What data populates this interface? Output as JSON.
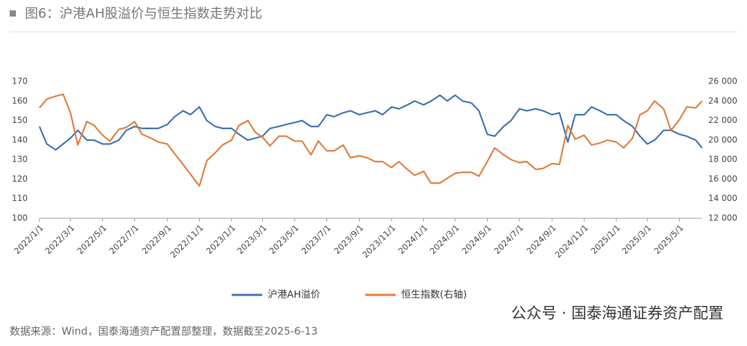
{
  "chart_data": {
    "type": "line",
    "title": "图6：沪港AH股溢价与恒生指数走势对比",
    "x": [
      "2022/1/1",
      "2022/1/15",
      "2022/2/1",
      "2022/2/15",
      "2022/3/1",
      "2022/3/15",
      "2022/4/1",
      "2022/4/15",
      "2022/5/1",
      "2022/5/15",
      "2022/6/1",
      "2022/6/15",
      "2022/7/1",
      "2022/7/15",
      "2022/8/1",
      "2022/8/15",
      "2022/9/1",
      "2022/9/15",
      "2022/10/1",
      "2022/10/15",
      "2022/11/1",
      "2022/11/15",
      "2022/12/1",
      "2022/12/15",
      "2023/1/1",
      "2023/1/15",
      "2023/2/1",
      "2023/2/15",
      "2023/3/1",
      "2023/3/15",
      "2023/4/1",
      "2023/4/15",
      "2023/5/1",
      "2023/5/15",
      "2023/6/1",
      "2023/6/15",
      "2023/7/1",
      "2023/7/15",
      "2023/8/1",
      "2023/8/15",
      "2023/9/1",
      "2023/9/15",
      "2023/10/1",
      "2023/10/15",
      "2023/11/1",
      "2023/11/15",
      "2023/12/1",
      "2023/12/15",
      "2024/1/1",
      "2024/1/15",
      "2024/2/1",
      "2024/2/15",
      "2024/3/1",
      "2024/3/15",
      "2024/4/1",
      "2024/4/15",
      "2024/5/1",
      "2024/5/15",
      "2024/6/1",
      "2024/6/15",
      "2024/7/1",
      "2024/7/15",
      "2024/8/1",
      "2024/8/15",
      "2024/9/1",
      "2024/9/15",
      "2024/10/1",
      "2024/10/15",
      "2024/11/1",
      "2024/11/15",
      "2024/12/1",
      "2024/12/15",
      "2025/1/1",
      "2025/1/15",
      "2025/2/1",
      "2025/2/15",
      "2025/3/1",
      "2025/3/15",
      "2025/4/1",
      "2025/4/15",
      "2025/5/1",
      "2025/5/15",
      "2025/6/1",
      "2025/6/13"
    ],
    "series": [
      {
        "name": "沪港AH溢价",
        "color": "#3b6fb0",
        "values": [
          147,
          138,
          135,
          138,
          141,
          145,
          140,
          140,
          138,
          138,
          140,
          145,
          147,
          146,
          146,
          146,
          148,
          152,
          155,
          153,
          157,
          150,
          147,
          146,
          146,
          143,
          140,
          141,
          142,
          146,
          147,
          148,
          149,
          150,
          147,
          147,
          153,
          152,
          154,
          155,
          153,
          154,
          155,
          153,
          157,
          156,
          158,
          160,
          158,
          160,
          163,
          160,
          163,
          160,
          159,
          155,
          143,
          142,
          147,
          150,
          156,
          155,
          156,
          155,
          153,
          154,
          139,
          153,
          153,
          157,
          155,
          153,
          153,
          150,
          147,
          142,
          138,
          140,
          145,
          145,
          143,
          142,
          140,
          136
        ]
      },
      {
        "name": "恒生指数(右轴)",
        "color": "#e07b39",
        "axis": "y2",
        "values": [
          23300,
          24200,
          24500,
          24700,
          22800,
          19500,
          21900,
          21500,
          20500,
          19900,
          21100,
          21300,
          21900,
          20600,
          20200,
          19800,
          19600,
          18600,
          17500,
          16500,
          15300,
          17900,
          18700,
          19500,
          20000,
          21500,
          22000,
          20800,
          20300,
          19400,
          20400,
          20400,
          19900,
          19900,
          18500,
          19900,
          18900,
          18900,
          19500,
          18200,
          18400,
          18200,
          17800,
          17800,
          17200,
          17800,
          17000,
          16400,
          16800,
          15600,
          15600,
          16100,
          16600,
          16700,
          16700,
          16300,
          17800,
          19200,
          18500,
          18000,
          17700,
          17800,
          17000,
          17100,
          17600,
          17500,
          21500,
          20100,
          20500,
          19500,
          19700,
          20000,
          19800,
          19200,
          20200,
          22600,
          23000,
          24000,
          23200,
          21000,
          22100,
          23400,
          23300,
          24000
        ]
      }
    ],
    "xlim": [
      "2022/1/1",
      "2025/6/13"
    ],
    "xticks": [
      "2022/1/1",
      "2022/3/1",
      "2022/5/1",
      "2022/7/1",
      "2022/9/1",
      "2022/11/1",
      "2023/1/1",
      "2023/3/1",
      "2023/5/1",
      "2023/7/1",
      "2023/9/1",
      "2023/11/1",
      "2024/1/1",
      "2024/3/1",
      "2024/5/1",
      "2024/7/1",
      "2024/9/1",
      "2024/11/1",
      "2025/1/1",
      "2025/3/1",
      "2025/5/1"
    ],
    "ylim": [
      100,
      170
    ],
    "yticks": [
      100,
      110,
      120,
      130,
      140,
      150,
      160,
      170
    ],
    "y2lim": [
      12000,
      26000
    ],
    "y2ticks": [
      {
        "value": 12000,
        "label": "12 000"
      },
      {
        "value": 14000,
        "label": "14 000"
      },
      {
        "value": 16000,
        "label": "16 000"
      },
      {
        "value": 18000,
        "label": "18 000"
      },
      {
        "value": 20000,
        "label": "20 000"
      },
      {
        "value": 22000,
        "label": "22 000"
      },
      {
        "value": 24000,
        "label": "24 000"
      },
      {
        "value": 26000,
        "label": "26 000"
      }
    ],
    "legend": "bottom"
  },
  "source": "数据来源：Wind，国泰海通资产配置部整理，数据截至2025-6-13",
  "watermark": "公众号 · 国泰海通证券资产配置"
}
